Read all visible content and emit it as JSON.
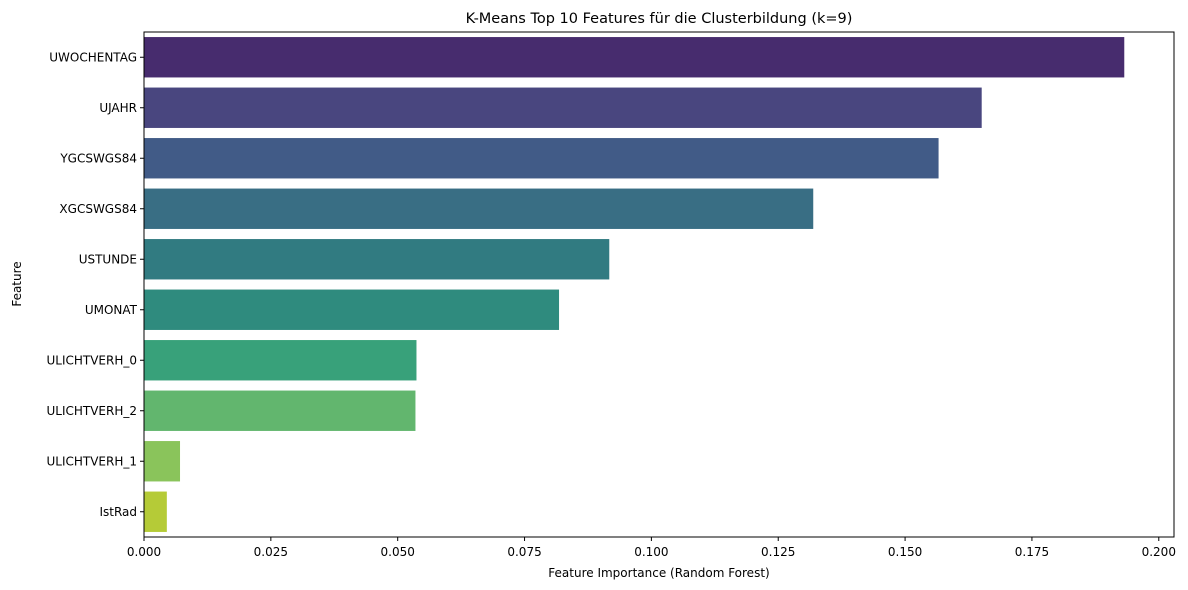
{
  "chart_data": {
    "type": "bar",
    "orientation": "horizontal",
    "title": "K-Means Top 10 Features für die Clusterbildung (k=9)",
    "xlabel": "Feature Importance (Random Forest)",
    "ylabel": "Feature",
    "xlim": [
      0,
      0.203
    ],
    "xticks": [
      0.0,
      0.025,
      0.05,
      0.075,
      0.1,
      0.125,
      0.15,
      0.175,
      0.2
    ],
    "xtick_labels": [
      "0.000",
      "0.025",
      "0.050",
      "0.075",
      "0.100",
      "0.125",
      "0.150",
      "0.175",
      "0.200"
    ],
    "grid": false,
    "legend": "none",
    "palette": "viridis",
    "categories": [
      "UWOCHENTAG",
      "UJAHR",
      "YGCSWGS84",
      "XGCSWGS84",
      "USTUNDE",
      "UMONAT",
      "ULICHTVERH_0",
      "ULICHTVERH_2",
      "ULICHTVERH_1",
      "IstRad"
    ],
    "values": [
      0.1932,
      0.1651,
      0.1566,
      0.1319,
      0.0917,
      0.0818,
      0.0537,
      0.0535,
      0.0071,
      0.0045
    ],
    "colors": [
      "#472c6e",
      "#49467f",
      "#415b87",
      "#396e84",
      "#317b81",
      "#2f8b7e",
      "#38a17a",
      "#62b66e",
      "#8ac45b",
      "#b5cb37"
    ]
  }
}
